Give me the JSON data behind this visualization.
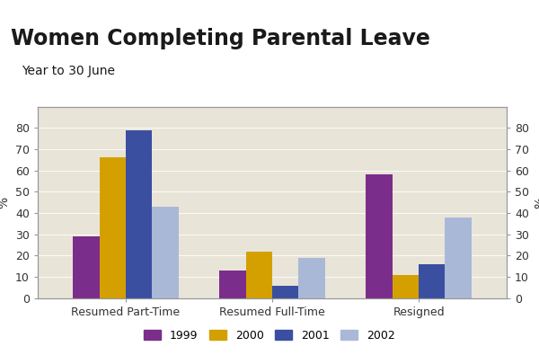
{
  "title": "Women Completing Parental Leave",
  "subtitle": "Year to 30 June",
  "categories": [
    "Resumed Part-Time",
    "Resumed Full-Time",
    "Resigned"
  ],
  "series": {
    "1999": [
      29,
      13,
      58
    ],
    "2000": [
      66,
      22,
      11
    ],
    "2001": [
      79,
      6,
      16
    ],
    "2002": [
      43,
      19,
      38
    ]
  },
  "colors": {
    "1999": "#7b2d8b",
    "2000": "#d4a000",
    "2001": "#3a4fa0",
    "2002": "#aab8d8"
  },
  "header_bg": "#f0a030",
  "plot_bg": "#e8e4d8",
  "ylabel": "%",
  "ylim": [
    0,
    90
  ],
  "yticks": [
    0,
    10,
    20,
    30,
    40,
    50,
    60,
    70,
    80
  ],
  "bar_width": 0.18,
  "legend_years": [
    "1999",
    "2000",
    "2001",
    "2002"
  ],
  "title_fontsize": 17,
  "subtitle_fontsize": 10,
  "axis_label_fontsize": 10,
  "tick_fontsize": 9
}
